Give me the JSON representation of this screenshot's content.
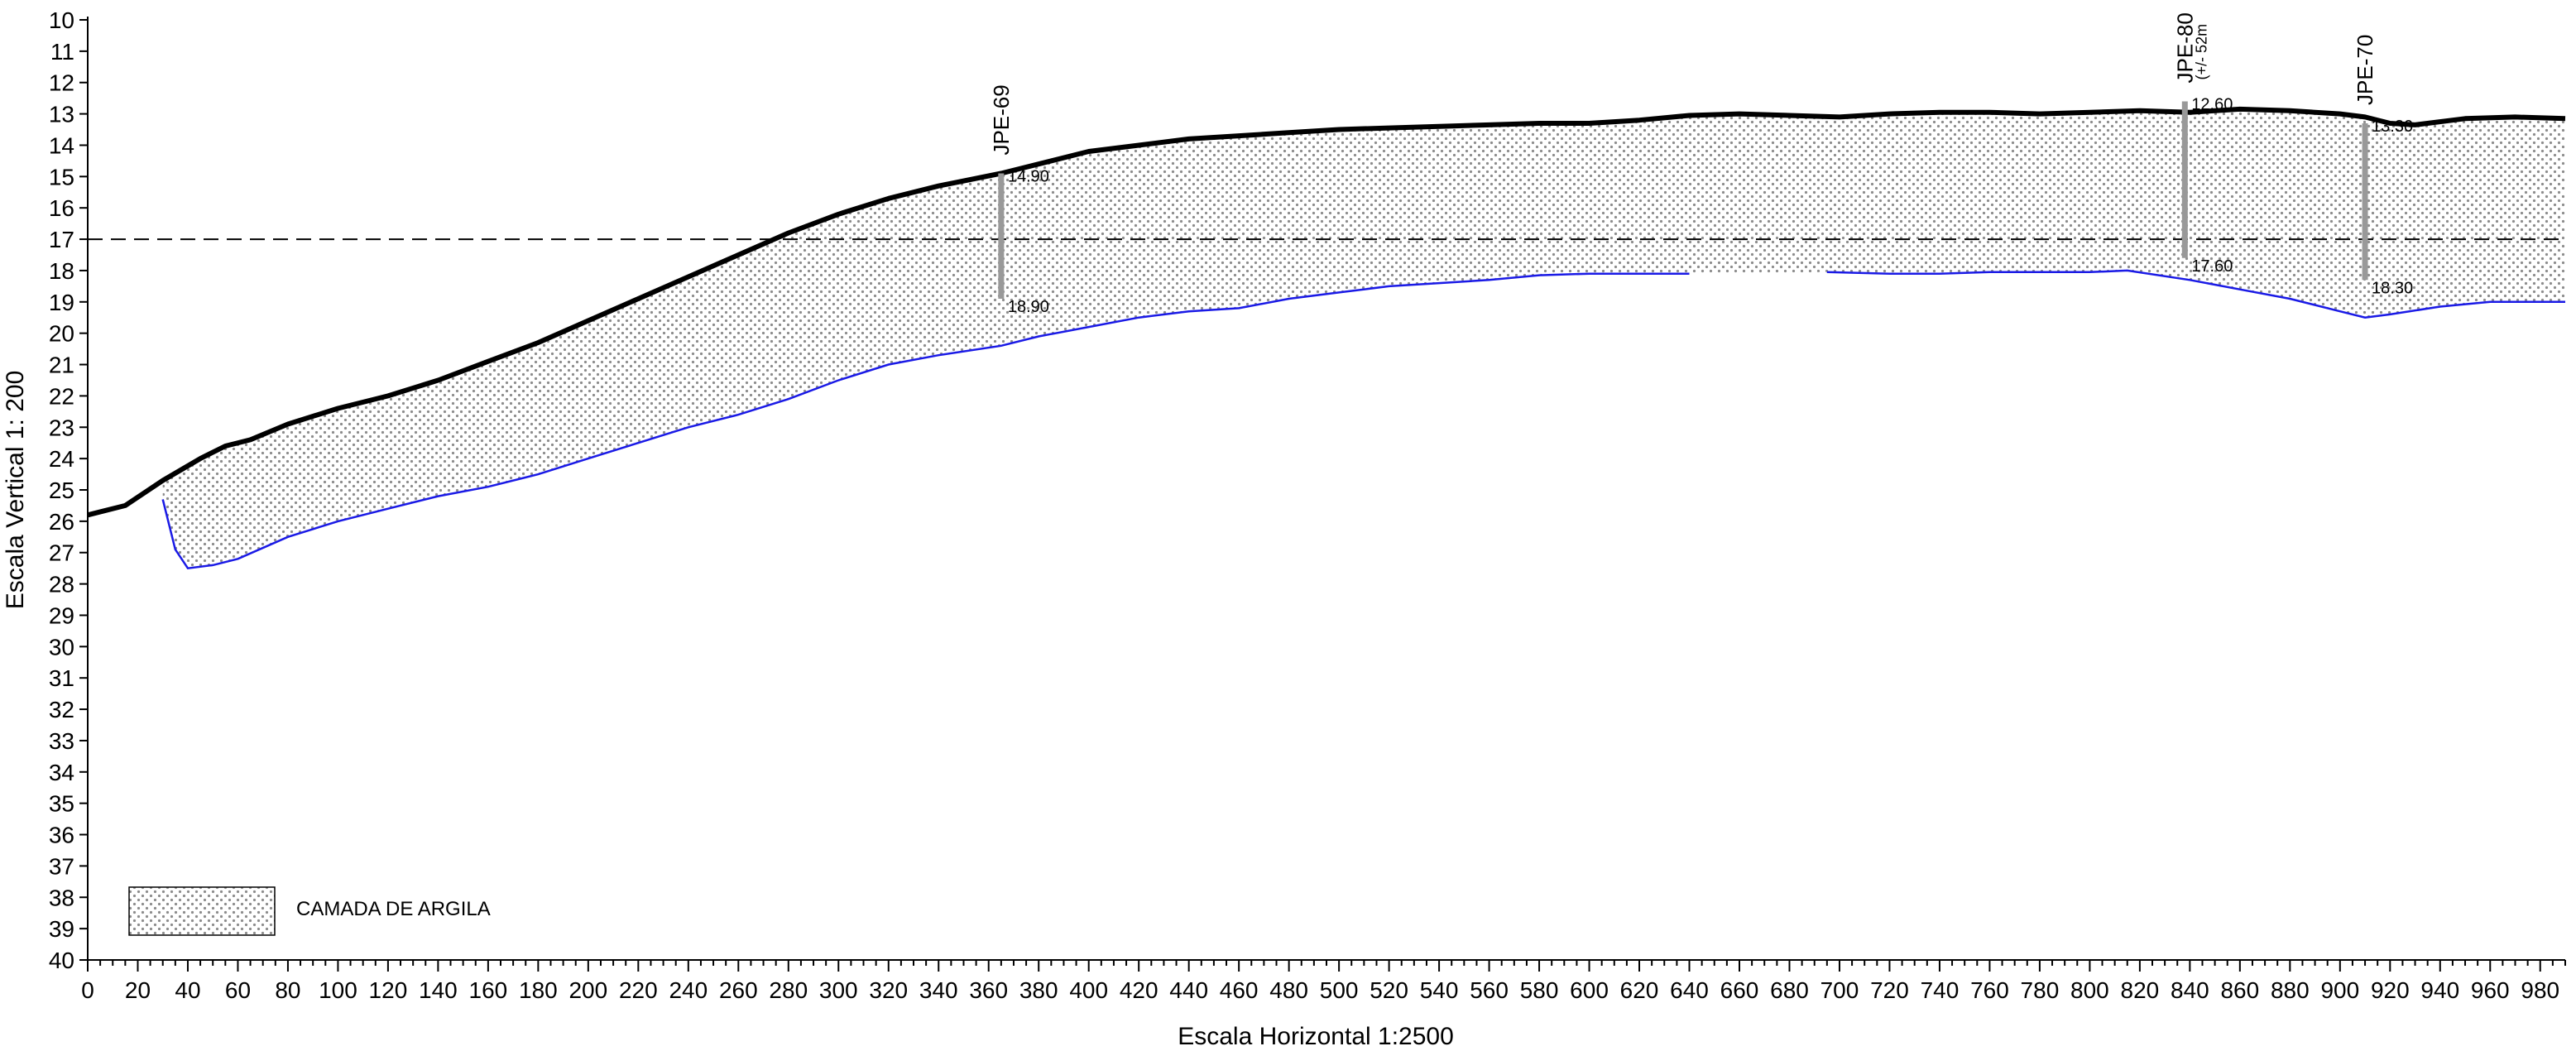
{
  "chart_data": {
    "type": "area",
    "title": "",
    "xlabel": "Escala Horizontal 1:2500",
    "ylabel": "Escala Vertical 1: 200",
    "xlim": [
      0,
      990
    ],
    "ylim": [
      40,
      10
    ],
    "x_ticks": [
      0,
      20,
      40,
      60,
      80,
      100,
      120,
      140,
      160,
      180,
      200,
      220,
      240,
      260,
      280,
      300,
      320,
      340,
      360,
      380,
      400,
      420,
      440,
      460,
      480,
      500,
      520,
      540,
      560,
      580,
      600,
      620,
      640,
      660,
      680,
      700,
      720,
      740,
      760,
      780,
      800,
      820,
      840,
      860,
      880,
      900,
      920,
      940,
      960,
      980
    ],
    "y_ticks": [
      10,
      11,
      12,
      13,
      14,
      15,
      16,
      17,
      18,
      19,
      20,
      21,
      22,
      23,
      24,
      25,
      26,
      27,
      28,
      29,
      30,
      31,
      32,
      33,
      34,
      35,
      36,
      37,
      38,
      39,
      40
    ],
    "water_level": 17,
    "surface": {
      "x": [
        0,
        15,
        30,
        45,
        55,
        65,
        80,
        100,
        120,
        140,
        160,
        180,
        200,
        220,
        240,
        260,
        280,
        300,
        320,
        340,
        365,
        380,
        400,
        420,
        440,
        460,
        480,
        500,
        520,
        540,
        560,
        580,
        600,
        620,
        640,
        660,
        680,
        700,
        720,
        740,
        760,
        780,
        800,
        820,
        840,
        860,
        880,
        900,
        910,
        920,
        930,
        950,
        970,
        990
      ],
      "y": [
        25.8,
        25.5,
        24.7,
        24.0,
        23.6,
        23.4,
        22.9,
        22.4,
        22.0,
        21.5,
        20.9,
        20.3,
        19.6,
        18.9,
        18.2,
        17.5,
        16.8,
        16.2,
        15.7,
        15.3,
        14.9,
        14.6,
        14.2,
        14.0,
        13.8,
        13.7,
        13.6,
        13.5,
        13.45,
        13.4,
        13.35,
        13.3,
        13.3,
        13.2,
        13.05,
        13.0,
        13.05,
        13.1,
        13.0,
        12.95,
        12.95,
        13.0,
        12.95,
        12.9,
        12.95,
        12.85,
        12.9,
        13.0,
        13.1,
        13.3,
        13.35,
        13.15,
        13.1,
        13.15
      ]
    },
    "clay_base_segments": [
      {
        "x": [
          30,
          35,
          40,
          50,
          60,
          80,
          100,
          120,
          140,
          160,
          180,
          200,
          220,
          240,
          260,
          280,
          300,
          320,
          340,
          365,
          380,
          400,
          420,
          440,
          460,
          480,
          500,
          520,
          540,
          560,
          580,
          600,
          620,
          640
        ],
        "y": [
          25.3,
          26.9,
          27.5,
          27.4,
          27.2,
          26.5,
          26.0,
          25.6,
          25.2,
          24.9,
          24.5,
          24.0,
          23.5,
          23.0,
          22.6,
          22.1,
          21.5,
          21.0,
          20.7,
          20.4,
          20.1,
          19.8,
          19.5,
          19.3,
          19.2,
          18.9,
          18.7,
          18.5,
          18.4,
          18.3,
          18.15,
          18.1,
          18.1,
          18.1
        ]
      },
      {
        "x": [
          695,
          720,
          740,
          760,
          780,
          800,
          815,
          840,
          860,
          880,
          900,
          910,
          920,
          940,
          960,
          990
        ],
        "y": [
          18.05,
          18.1,
          18.1,
          18.05,
          18.05,
          18.05,
          18.0,
          18.3,
          18.6,
          18.9,
          19.3,
          19.5,
          19.4,
          19.15,
          19.0,
          19.0
        ]
      }
    ],
    "boreholes": [
      {
        "name": "JPE-69",
        "note": "",
        "x": 365,
        "top": 14.9,
        "bottom": 18.9,
        "top_label": "14.90",
        "bottom_label": "18.90"
      },
      {
        "name": "JPE-80",
        "note": "(+/- 52m",
        "x": 838,
        "top": 12.6,
        "bottom": 17.6,
        "top_label": "12.60",
        "bottom_label": "17.60"
      },
      {
        "name": "JPE-70",
        "note": "",
        "x": 910,
        "top": 13.3,
        "bottom": 18.3,
        "top_label": "13.30",
        "bottom_label": "18.30"
      }
    ],
    "legend": {
      "placement": "bottom-left",
      "label": "CAMADA DE ARGILA"
    },
    "colors": {
      "surface": "#000000",
      "clay_base": "#1a1ae6",
      "fill_dots": "#8c8c8c",
      "borehole": "#999999",
      "water_line": "#000000"
    }
  }
}
